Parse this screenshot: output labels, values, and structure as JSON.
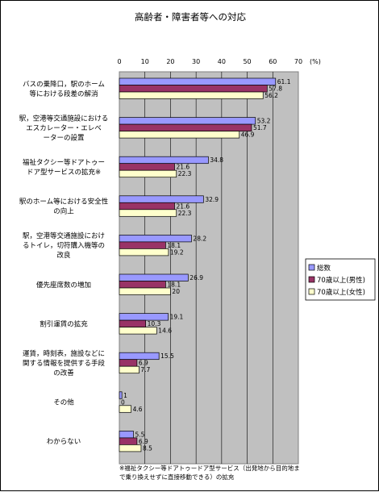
{
  "chart_data": {
    "type": "bar",
    "orientation": "horizontal",
    "title": "高齢者・障害者等への対応",
    "unit_label": "(%)",
    "xlim": [
      0,
      70
    ],
    "x_ticks": [
      0,
      10,
      20,
      30,
      40,
      50,
      60,
      70
    ],
    "grid": "vertical",
    "legend_position": "right",
    "categories": [
      [
        "バスの乗降口，駅のホーム",
        "等における段差の解消"
      ],
      [
        "駅，空港等交通施設における",
        "エスカレーター・エレベ",
        "ーターの設置"
      ],
      [
        "福祉タクシー等ドアトゥー",
        "ドア型サービスの拡充※"
      ],
      [
        "駅のホーム等における安全性",
        "の向上"
      ],
      [
        "駅，空港等交通施設におけ",
        "るトイレ，切符購入機等の",
        "改良"
      ],
      [
        "優先座席数の増加"
      ],
      [
        "割引運賃の拡充"
      ],
      [
        "運賃，時刻表，施設などに",
        "関する情報を提供する手段",
        "の改善"
      ],
      [
        "その他"
      ],
      [
        "わからない"
      ]
    ],
    "series": [
      {
        "name": "総数",
        "color": "#9999ff",
        "values": [
          61.1,
          53.2,
          34.8,
          32.9,
          28.2,
          26.9,
          19.1,
          15.5,
          1,
          5.5
        ],
        "labels": [
          "61.1",
          "53.2",
          "34.8",
          "32.9",
          "28.2",
          "26.9",
          "19.1",
          "15.5",
          "1",
          "5.5"
        ]
      },
      {
        "name": "70歳以上(男性)",
        "color": "#993366",
        "values": [
          57.8,
          51.7,
          21.6,
          21.6,
          18.1,
          18.1,
          10.3,
          6.9,
          0,
          6.9
        ],
        "labels": [
          "57.8",
          "51.7",
          "21.6",
          "21.6",
          "18.1",
          "18.1",
          "10.3",
          "6.9",
          "0",
          "6.9"
        ]
      },
      {
        "name": "70歳以上(女性)",
        "color": "#ffffcc",
        "values": [
          56.2,
          46.9,
          22.3,
          22.3,
          19.2,
          20,
          14.6,
          7.7,
          4.6,
          8.5
        ],
        "labels": [
          "56.2",
          "46.9",
          "22.3",
          "22.3",
          "19.2",
          "20",
          "14.6",
          "7.7",
          "4.6",
          "8.5"
        ]
      }
    ],
    "footnote": [
      "※福祉タクシー等ドアトゥードア型サービス（出発地から目的地ま",
      "で乗り換えせずに直接移動できる）の拡充"
    ],
    "colors": {
      "plot_background": "#c0c0c0",
      "bar_outline": "#000000"
    }
  }
}
